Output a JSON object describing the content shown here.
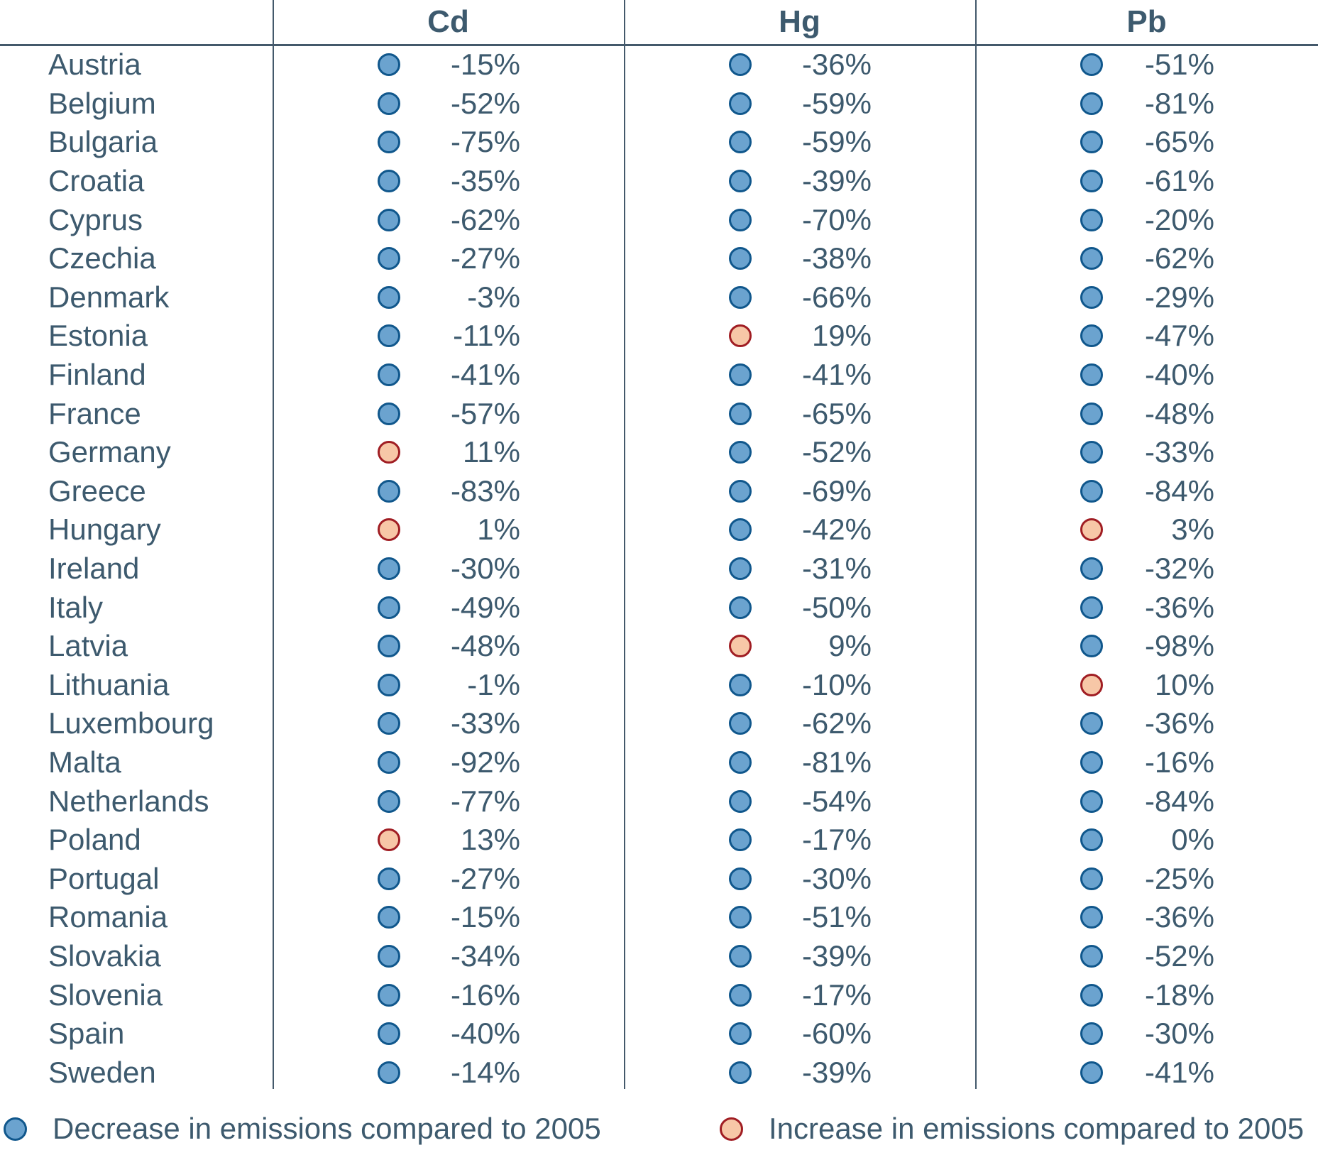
{
  "table": {
    "columns": [
      "Cd",
      "Hg",
      "Pb"
    ],
    "rows": [
      {
        "country": "Austria",
        "cd": "-15%",
        "hg": "-36%",
        "pb": "-51%"
      },
      {
        "country": "Belgium",
        "cd": "-52%",
        "hg": "-59%",
        "pb": "-81%"
      },
      {
        "country": "Bulgaria",
        "cd": "-75%",
        "hg": "-59%",
        "pb": "-65%"
      },
      {
        "country": "Croatia",
        "cd": "-35%",
        "hg": "-39%",
        "pb": "-61%"
      },
      {
        "country": "Cyprus",
        "cd": "-62%",
        "hg": "-70%",
        "pb": "-20%"
      },
      {
        "country": "Czechia",
        "cd": "-27%",
        "hg": "-38%",
        "pb": "-62%"
      },
      {
        "country": "Denmark",
        "cd": "-3%",
        "hg": "-66%",
        "pb": "-29%"
      },
      {
        "country": "Estonia",
        "cd": "-11%",
        "hg": "19%",
        "pb": "-47%"
      },
      {
        "country": "Finland",
        "cd": "-41%",
        "hg": "-41%",
        "pb": "-40%"
      },
      {
        "country": "France",
        "cd": "-57%",
        "hg": "-65%",
        "pb": "-48%"
      },
      {
        "country": "Germany",
        "cd": "11%",
        "hg": "-52%",
        "pb": "-33%"
      },
      {
        "country": "Greece",
        "cd": "-83%",
        "hg": "-69%",
        "pb": "-84%"
      },
      {
        "country": "Hungary",
        "cd": "1%",
        "hg": "-42%",
        "pb": "3%"
      },
      {
        "country": "Ireland",
        "cd": "-30%",
        "hg": "-31%",
        "pb": "-32%"
      },
      {
        "country": "Italy",
        "cd": "-49%",
        "hg": "-50%",
        "pb": "-36%"
      },
      {
        "country": "Latvia",
        "cd": "-48%",
        "hg": "9%",
        "pb": "-98%"
      },
      {
        "country": "Lithuania",
        "cd": "-1%",
        "hg": "-10%",
        "pb": "10%"
      },
      {
        "country": "Luxembourg",
        "cd": "-33%",
        "hg": "-62%",
        "pb": "-36%"
      },
      {
        "country": "Malta",
        "cd": "-92%",
        "hg": "-81%",
        "pb": "-16%"
      },
      {
        "country": "Netherlands",
        "cd": "-77%",
        "hg": "-54%",
        "pb": "-84%"
      },
      {
        "country": "Poland",
        "cd": "13%",
        "hg": "-17%",
        "pb": "0%"
      },
      {
        "country": "Portugal",
        "cd": "-27%",
        "hg": "-30%",
        "pb": "-25%"
      },
      {
        "country": "Romania",
        "cd": "-15%",
        "hg": "-51%",
        "pb": "-36%"
      },
      {
        "country": "Slovakia",
        "cd": "-34%",
        "hg": "-39%",
        "pb": "-52%"
      },
      {
        "country": "Slovenia",
        "cd": "-16%",
        "hg": "-17%",
        "pb": "-18%"
      },
      {
        "country": "Spain",
        "cd": "-40%",
        "hg": "-60%",
        "pb": "-30%"
      },
      {
        "country": "Sweden",
        "cd": "-14%",
        "hg": "-39%",
        "pb": "-41%"
      }
    ]
  },
  "legend": {
    "decrease_label": "Decrease in emissions compared to 2005",
    "increase_label": "Increase in emissions compared to 2005"
  },
  "colors": {
    "decrease_fill": "#6ba3cf",
    "decrease_border": "#10578c",
    "increase_fill": "#f7c7a7",
    "increase_border": "#a01d23",
    "text": "#3d5a6e",
    "line": "#44596b"
  },
  "chart_data": {
    "type": "table",
    "title": "",
    "categories": [
      "Austria",
      "Belgium",
      "Bulgaria",
      "Croatia",
      "Cyprus",
      "Czechia",
      "Denmark",
      "Estonia",
      "Finland",
      "France",
      "Germany",
      "Greece",
      "Hungary",
      "Ireland",
      "Italy",
      "Latvia",
      "Lithuania",
      "Luxembourg",
      "Malta",
      "Netherlands",
      "Poland",
      "Portugal",
      "Romania",
      "Slovakia",
      "Slovenia",
      "Spain",
      "Sweden"
    ],
    "series": [
      {
        "name": "Cd",
        "unit": "% change vs 2005",
        "values": [
          -15,
          -52,
          -75,
          -35,
          -62,
          -27,
          -3,
          -11,
          -41,
          -57,
          11,
          -83,
          1,
          -30,
          -49,
          -48,
          -1,
          -33,
          -92,
          -77,
          13,
          -27,
          -15,
          -34,
          -16,
          -40,
          -14
        ]
      },
      {
        "name": "Hg",
        "unit": "% change vs 2005",
        "values": [
          -36,
          -59,
          -59,
          -39,
          -70,
          -38,
          -66,
          19,
          -41,
          -65,
          -52,
          -69,
          -42,
          -31,
          -50,
          9,
          -10,
          -62,
          -81,
          -54,
          -17,
          -30,
          -51,
          -39,
          -17,
          -60,
          -39
        ]
      },
      {
        "name": "Pb",
        "unit": "% change vs 2005",
        "values": [
          -51,
          -81,
          -65,
          -61,
          -20,
          -62,
          -29,
          -47,
          -40,
          -48,
          -33,
          -84,
          3,
          -32,
          -36,
          -98,
          10,
          -36,
          -16,
          -84,
          0,
          -25,
          -36,
          -52,
          -18,
          -30,
          -41
        ]
      }
    ],
    "legend_entries": [
      "Decrease in emissions compared to 2005",
      "Increase in emissions compared to 2005"
    ],
    "legend_position": "bottom"
  }
}
